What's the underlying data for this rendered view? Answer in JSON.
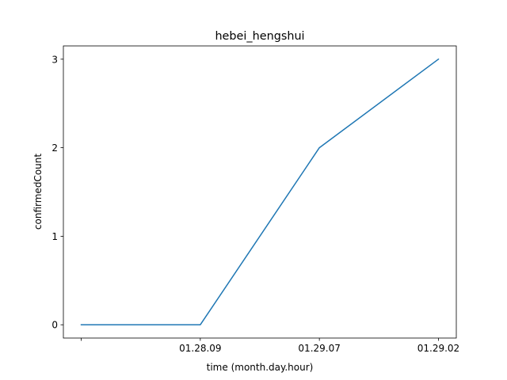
{
  "chart_data": {
    "type": "line",
    "title": "hebei_hengshui",
    "xlabel": "time (month.day.hour)",
    "ylabel": "confirmedCount",
    "x_tick_labels": [
      "",
      "01.28.09",
      "01.29.07",
      "01.29.02"
    ],
    "y_ticks": [
      0,
      1,
      2,
      3
    ],
    "ylim": [
      -0.15,
      3.15
    ],
    "grid": false,
    "series": [
      {
        "color": "#1f77b4",
        "x": [
          "",
          "01.28.09",
          "01.29.07",
          "01.29.02"
        ],
        "values": [
          0,
          0,
          2,
          3
        ]
      }
    ]
  }
}
